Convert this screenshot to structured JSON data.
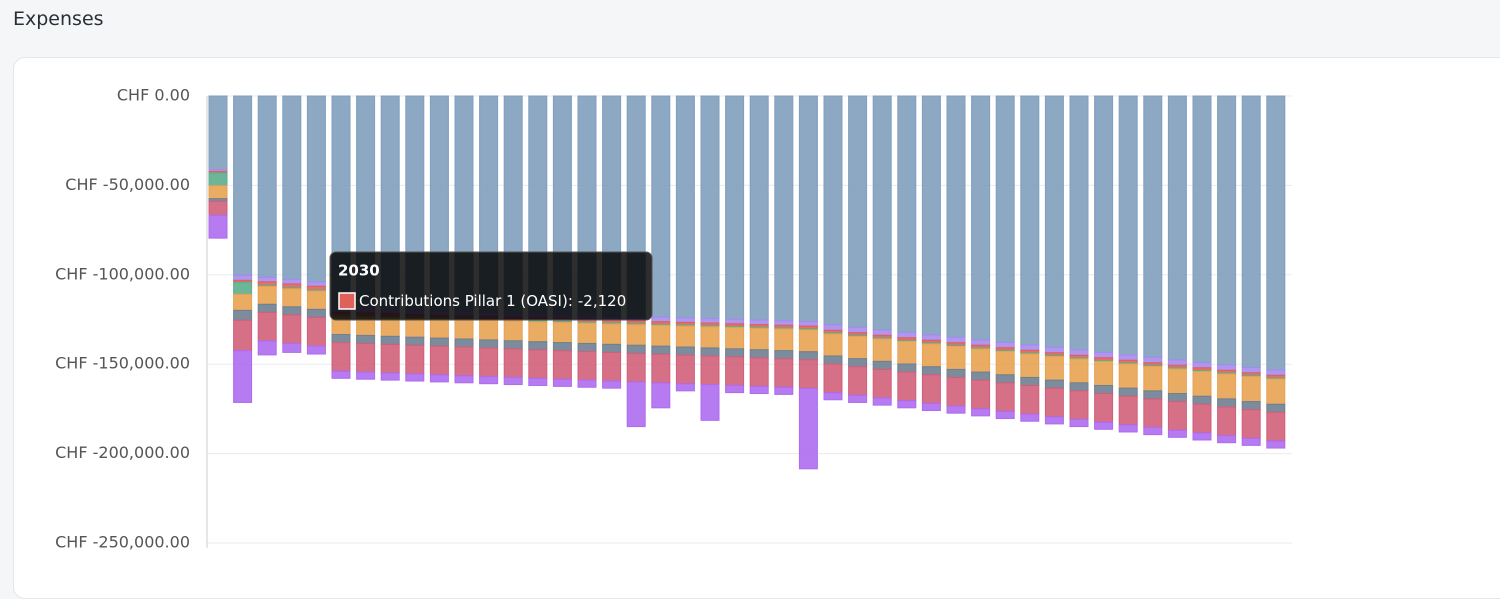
{
  "header": {
    "title": "Expenses"
  },
  "chart_data": {
    "type": "bar",
    "stacked": true,
    "categories": [
      null,
      null,
      null,
      null,
      null,
      null,
      null,
      null,
      null,
      null,
      null,
      null,
      null,
      null,
      null,
      null,
      null,
      null,
      null,
      null,
      null,
      null,
      null,
      null,
      null,
      null,
      null,
      null,
      null,
      null,
      null,
      null,
      null,
      null,
      null,
      null,
      null,
      null,
      null,
      null,
      null,
      null,
      null,
      null
    ],
    "ylim": [
      -250000,
      0
    ],
    "yticks": [
      {
        "value": 0,
        "label": "CHF 0.00"
      },
      {
        "value": -50000,
        "label": "CHF -50,000.00"
      },
      {
        "value": -100000,
        "label": "CHF -100,000.00"
      },
      {
        "value": -150000,
        "label": "CHF -150,000.00"
      },
      {
        "value": -200000,
        "label": "CHF -200,000.00"
      },
      {
        "value": -250000,
        "label": "CHF -250,000.00"
      }
    ],
    "grid": true,
    "series": [
      {
        "color": "#7f9fbd",
        "values": [
          -41200,
          -100300,
          -101400,
          -102600,
          -103900,
          -118500,
          -118900,
          -119300,
          -119700,
          -120100,
          -120500,
          -120900,
          -121300,
          -121700,
          -122100,
          -122500,
          -122900,
          -123300,
          -123700,
          -124100,
          -124500,
          -124900,
          -125300,
          -125700,
          -126200,
          -128000,
          -129400,
          -130800,
          -132200,
          -133600,
          -135000,
          -136400,
          -137800,
          -139200,
          -140600,
          -142000,
          -143400,
          -144800,
          -146200,
          -147600,
          -149000,
          -150400,
          -151800,
          -153200
        ]
      },
      {
        "color": "#a58bf0",
        "values": [
          -1000,
          -2800,
          -2500,
          -2500,
          -2500,
          -2500,
          -2500,
          -2500,
          -2500,
          -2500,
          -2500,
          -2500,
          -2500,
          -2500,
          -2500,
          -2500,
          -2500,
          -2500,
          -2500,
          -2500,
          -2500,
          -2500,
          -2500,
          -2500,
          -2500,
          -3000,
          -3000,
          -3000,
          -3000,
          -3000,
          -3000,
          -3000,
          -3000,
          -3000,
          -3000,
          -3000,
          -3000,
          -3000,
          -3000,
          -3000,
          -3000,
          -3000,
          -3000,
          -3000
        ]
      },
      {
        "color": "#e0605a",
        "values": [
          -800,
          -1100,
          -2000,
          -2100,
          -2120,
          -1500,
          -1500,
          -1500,
          -1500,
          -1500,
          -1500,
          -1500,
          -1500,
          -1500,
          -1500,
          -1500,
          -1500,
          -1500,
          -1500,
          -1500,
          -1500,
          -1500,
          -1500,
          -1500,
          -1500,
          -1500,
          -1500,
          -1500,
          -1500,
          -1500,
          -1500,
          -1500,
          -1500,
          -1500,
          -1500,
          -1500,
          -1500,
          -1500,
          -1500,
          -1500,
          -1500,
          -1500,
          -1500,
          -1500
        ]
      },
      {
        "color": "#5cae8c",
        "values": [
          -7200,
          -6700,
          -600,
          -600,
          -600,
          -600,
          -600,
          -600,
          -600,
          -600,
          -600,
          -600,
          -600,
          -600,
          -600,
          -600,
          -600,
          -600,
          -600,
          -600,
          -600,
          -600,
          -600,
          -600,
          -600,
          -600,
          -600,
          -600,
          -600,
          -600,
          -600,
          -600,
          -600,
          -600,
          -600,
          -600,
          -600,
          -600,
          -600,
          -600,
          -600,
          -600,
          -600,
          -600
        ]
      },
      {
        "color": "#e8a252",
        "values": [
          -7200,
          -9000,
          -10000,
          -10100,
          -10200,
          -10300,
          -10400,
          -10500,
          -10600,
          -10700,
          -10800,
          -10900,
          -11000,
          -11100,
          -11200,
          -11300,
          -11400,
          -11500,
          -11600,
          -11700,
          -11800,
          -11900,
          -12000,
          -12100,
          -12200,
          -12300,
          -12400,
          -12500,
          -12600,
          -12700,
          -12800,
          -12900,
          -13000,
          -13100,
          -13200,
          -13300,
          -13400,
          -13500,
          -13600,
          -13700,
          -13800,
          -13900,
          -14000,
          -14100
        ]
      },
      {
        "color": "#6e8091",
        "values": [
          -1500,
          -5500,
          -4500,
          -4500,
          -4500,
          -4500,
          -4500,
          -4500,
          -4500,
          -4500,
          -4500,
          -4500,
          -4500,
          -4500,
          -4500,
          -4500,
          -4500,
          -4500,
          -4500,
          -4500,
          -4500,
          -4500,
          -4500,
          -4500,
          -4500,
          -4500,
          -4500,
          -4500,
          -4500,
          -4500,
          -4500,
          -4500,
          -4500,
          -4500,
          -4500,
          -4500,
          -4500,
          -4500,
          -4500,
          -4500,
          -4500,
          -4500,
          -4500,
          -4500
        ]
      },
      {
        "color": "#d0607a",
        "values": [
          -7800,
          -17000,
          -16000,
          -16000,
          -16000,
          -16000,
          -16000,
          -16000,
          -16000,
          -16000,
          -16000,
          -16000,
          -16000,
          -16000,
          -16000,
          -16000,
          -16000,
          -16000,
          -16000,
          -16000,
          -16000,
          -16000,
          -16000,
          -16000,
          -16000,
          -16000,
          -16000,
          -16000,
          -16000,
          -16000,
          -16000,
          -16000,
          -16000,
          -16000,
          -16000,
          -16000,
          -16000,
          -16000,
          -16000,
          -16000,
          -16000,
          -16000,
          -16000,
          -16000
        ]
      },
      {
        "color": "#ae6cef",
        "values": [
          -12800,
          -29000,
          -7800,
          -5000,
          -4500,
          -4000,
          -4000,
          -4000,
          -4000,
          -4000,
          -4000,
          -4000,
          -4000,
          -4000,
          -4000,
          -4000,
          -4000,
          -25000,
          -14000,
          -4000,
          -20000,
          -4000,
          -4000,
          -4000,
          -45000,
          -4000,
          -4000,
          -4000,
          -4000,
          -4000,
          -4000,
          -4000,
          -4000,
          -4000,
          -4000,
          -4000,
          -4000,
          -4000,
          -4000,
          -4000,
          -4000,
          -4000,
          -4000,
          -4000
        ]
      }
    ],
    "tooltip": {
      "title": "2030",
      "label": "Contributions Pillar 1 (OASI):",
      "value": -2120,
      "value_label": "-2,120",
      "color": "#e0605a"
    }
  }
}
